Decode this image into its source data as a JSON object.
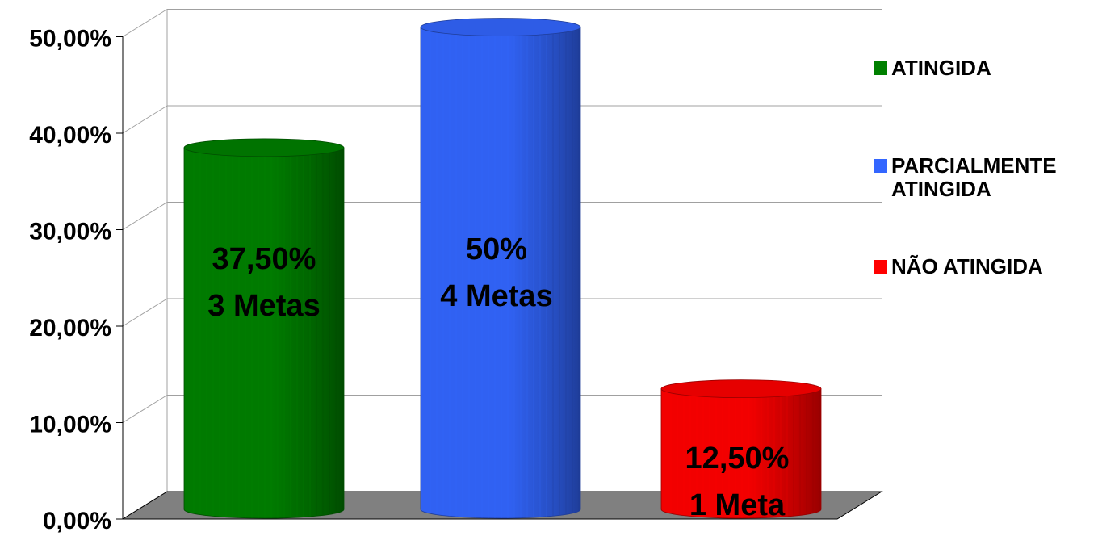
{
  "chart_data": {
    "type": "bar",
    "style": "3d-cylinder",
    "categories": [
      "ATINGIDA",
      "PARCIALMENTE ATINGIDA",
      "NÃO ATINGIDA"
    ],
    "values": [
      37.5,
      50,
      12.5
    ],
    "colors": [
      "#008000",
      "#3366ff",
      "#ff0000"
    ],
    "bar_labels": [
      [
        "37,50%",
        "3 Metas"
      ],
      [
        "50%",
        "4 Metas"
      ],
      [
        "12,50%",
        "1 Meta"
      ]
    ],
    "ylim": [
      0,
      50
    ],
    "yticks": [
      "0,00%",
      "10,00%",
      "20,00%",
      "30,00%",
      "40,00%",
      "50,00%"
    ],
    "grid": true,
    "legend_position": "right"
  },
  "legend": [
    {
      "label": "ATINGIDA",
      "color": "#008000"
    },
    {
      "label": "PARCIALMENTE\nATINGIDA",
      "color": "#3366ff"
    },
    {
      "label": "NÃO ATINGIDA",
      "color": "#ff0000"
    }
  ]
}
